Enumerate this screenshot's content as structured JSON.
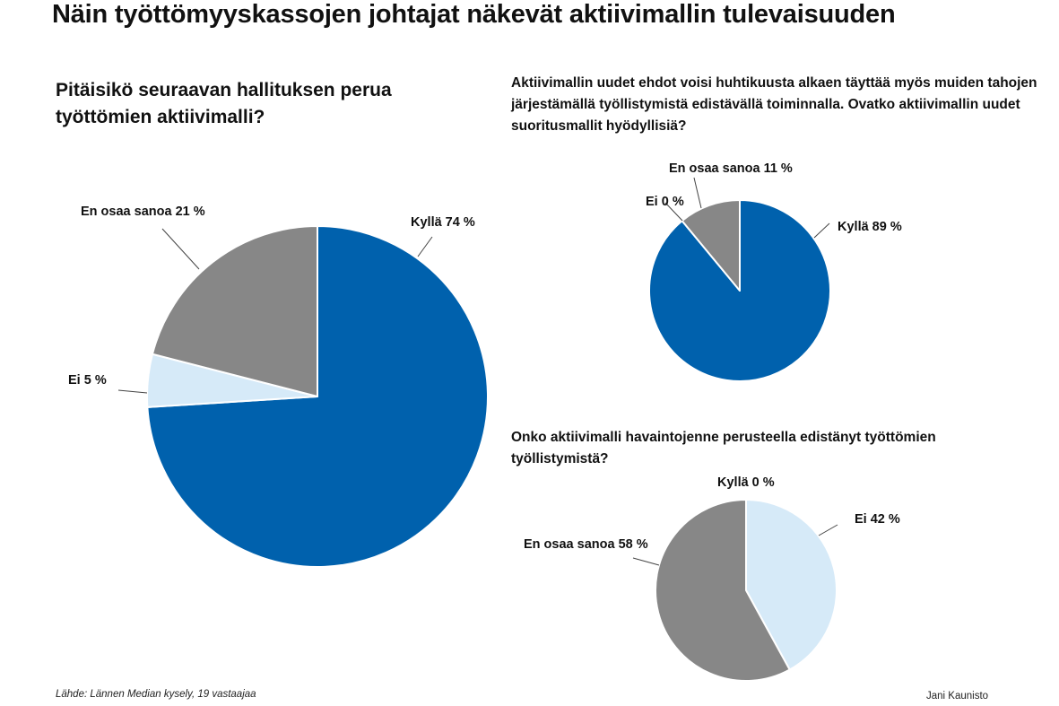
{
  "title": "Näin työttömyyskassojen johtajat näkevät aktiivimallin tulevaisuuden",
  "source": "Lähde: Lännen Median kysely, 19 vastaajaa",
  "author": "Jani Kaunisto",
  "colors": {
    "blue": "#0061ad",
    "light_blue": "#d6eaf8",
    "gray": "#878787"
  },
  "chart_data": [
    {
      "type": "pie",
      "title": "Pitäisikö seuraavan hallituksen perua työttömien aktiivimalli?",
      "slices": [
        {
          "label": "Kyllä",
          "value": 74,
          "text": "Kyllä 74 %",
          "color": "#0061ad"
        },
        {
          "label": "Ei",
          "value": 5,
          "text": "Ei 5 %",
          "color": "#d6eaf8"
        },
        {
          "label": "En osaa sanoa",
          "value": 21,
          "text": "En osaa sanoa 21 %",
          "color": "#878787"
        }
      ]
    },
    {
      "type": "pie",
      "title": "Aktiivimallin uudet ehdot voisi huhtikuusta alkaen täyttää myös muiden tahojen järjestämällä työllistymistä edistävällä toiminnalla. Ovatko aktiivimallin uudet suoritusmallit hyödyllisiä?",
      "slices": [
        {
          "label": "Kyllä",
          "value": 89,
          "text": "Kyllä 89 %",
          "color": "#0061ad"
        },
        {
          "label": "Ei",
          "value": 0,
          "text": "Ei 0 %",
          "color": "#d6eaf8"
        },
        {
          "label": "En osaa sanoa",
          "value": 11,
          "text": "En osaa sanoa  11 %",
          "color": "#878787"
        }
      ]
    },
    {
      "type": "pie",
      "title": "Onko aktiivimalli havaintojenne perusteella edistänyt työttömien työllistymistä?",
      "slices": [
        {
          "label": "Kyllä",
          "value": 0,
          "text": "Kyllä 0 %",
          "color": "#0061ad"
        },
        {
          "label": "Ei",
          "value": 42,
          "text": "Ei 42 %",
          "color": "#d6eaf8"
        },
        {
          "label": "En osaa sanoa",
          "value": 58,
          "text": "En osaa sanoa 58 %",
          "color": "#878787"
        }
      ]
    }
  ]
}
